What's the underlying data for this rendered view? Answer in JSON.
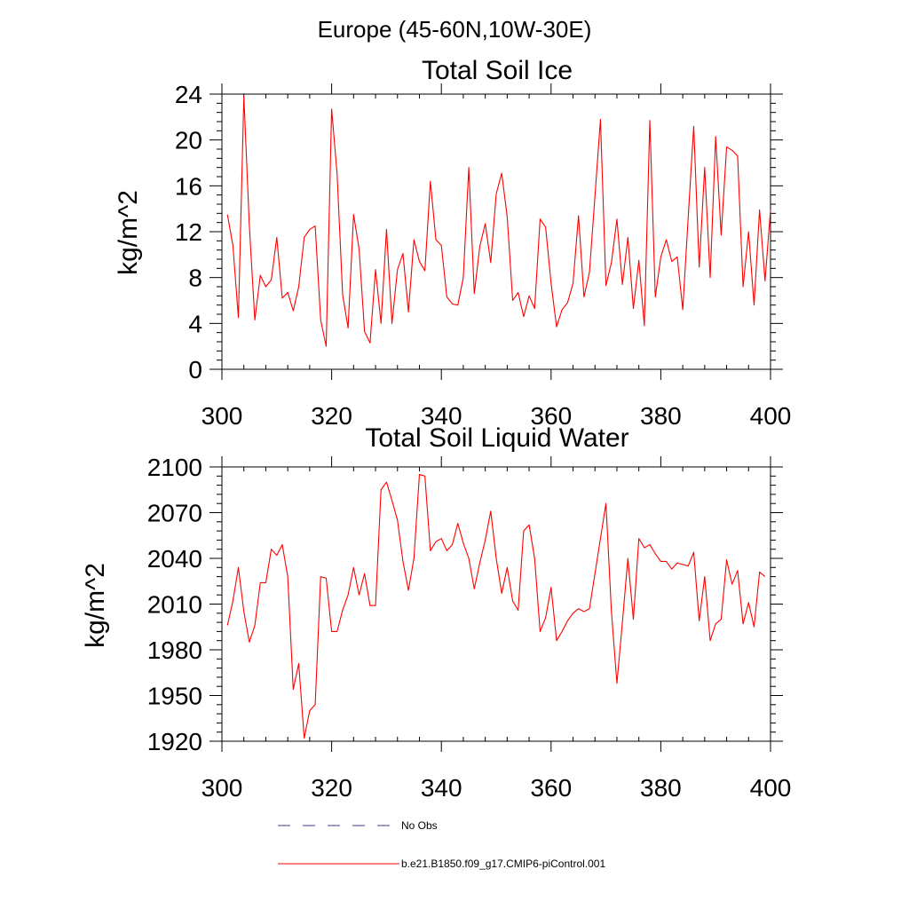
{
  "figure": {
    "title": "Europe (45-60N,10W-30E)"
  },
  "colors": {
    "series_line": "#ff0000",
    "obs_line": "#3b3b8f",
    "axis": "#000000"
  },
  "legend": {
    "items": [
      {
        "label": "No Obs",
        "style": "dashed",
        "color": "#3b3b8f"
      },
      {
        "label": "b.e21.B1850.f09_g17.CMIP6-piControl.001",
        "style": "solid",
        "color": "#ff0000"
      }
    ],
    "placement": "bottom"
  },
  "chart_data": [
    {
      "type": "line",
      "title": "Total Soil Ice",
      "xlabel": "",
      "ylabel": "kg/m^2",
      "xlim": [
        300,
        400
      ],
      "ylim": [
        0,
        24
      ],
      "xticks": [
        300,
        320,
        340,
        360,
        380,
        400
      ],
      "yticks": [
        0,
        4,
        8,
        12,
        16,
        20,
        24
      ],
      "series": [
        {
          "name": "b.e21.B1850.f09_g17.CMIP6-piControl.001",
          "x_start": 301,
          "values": [
            13.5,
            10.8,
            4.5,
            23.8,
            12.5,
            4.3,
            8.2,
            7.2,
            7.8,
            11.5,
            6.2,
            6.7,
            5.1,
            7.2,
            11.5,
            12.2,
            12.5,
            4.3,
            2.0,
            22.7,
            17.0,
            6.5,
            3.6,
            13.5,
            10.5,
            3.3,
            2.3,
            8.7,
            4.0,
            12.2,
            4.0,
            8.7,
            10.1,
            5.0,
            11.3,
            9.4,
            8.6,
            16.4,
            11.3,
            10.8,
            6.3,
            5.7,
            5.6,
            8.0,
            17.6,
            6.6,
            10.7,
            12.7,
            9.3,
            15.3,
            17.1,
            13.3,
            6.0,
            6.7,
            4.6,
            6.4,
            5.3,
            13.1,
            12.4,
            7.5,
            3.7,
            5.2,
            5.8,
            7.5,
            13.4,
            6.3,
            8.5,
            15.1,
            21.8,
            7.3,
            9.3,
            13.1,
            7.4,
            11.5,
            5.3,
            9.5,
            3.8,
            21.7,
            6.3,
            9.8,
            11.3,
            9.4,
            9.8,
            5.2,
            13.3,
            21.2,
            8.9,
            17.6,
            8.0,
            20.3,
            11.7,
            19.4,
            19.1,
            18.6,
            7.2,
            12.0,
            5.6,
            13.9,
            7.7,
            13.9
          ]
        }
      ]
    },
    {
      "type": "line",
      "title": "Total Soil Liquid Water",
      "xlabel": "",
      "ylabel": "kg/m^2",
      "xlim": [
        300,
        400
      ],
      "ylim": [
        1920,
        2100
      ],
      "xticks": [
        300,
        320,
        340,
        360,
        380,
        400
      ],
      "yticks": [
        1920,
        1950,
        1980,
        2010,
        2040,
        2070,
        2100
      ],
      "series": [
        {
          "name": "b.e21.B1850.f09_g17.CMIP6-piControl.001",
          "x_start": 301,
          "values": [
            1996,
            2012,
            2034,
            2005,
            1985,
            1996,
            2024,
            2024,
            2046,
            2042,
            2049,
            2028,
            1954,
            1971,
            1922,
            1940,
            1944,
            2028,
            2027,
            1992,
            1992,
            2006,
            2016,
            2034,
            2016,
            2030,
            2009,
            2009,
            2085,
            2090,
            2078,
            2065,
            2038,
            2019,
            2040,
            2095,
            2094,
            2045,
            2051,
            2053,
            2045,
            2049,
            2063,
            2050,
            2040,
            2020,
            2037,
            2052,
            2071,
            2040,
            2017,
            2034,
            2012,
            2006,
            2058,
            2062,
            2040,
            1992,
            2001,
            2021,
            1986,
            1992,
            1999,
            2004,
            2007,
            2005,
            2007,
            2030,
            2053,
            2076,
            2005,
            1958,
            1998,
            2040,
            2000,
            2053,
            2047,
            2049,
            2043,
            2038,
            2038,
            2033,
            2037,
            2036,
            2035,
            2044,
            1999,
            2028,
            1986,
            1997,
            2000,
            2039,
            2023,
            2032,
            1997,
            2011,
            1995,
            2031,
            2028
          ]
        }
      ]
    }
  ]
}
